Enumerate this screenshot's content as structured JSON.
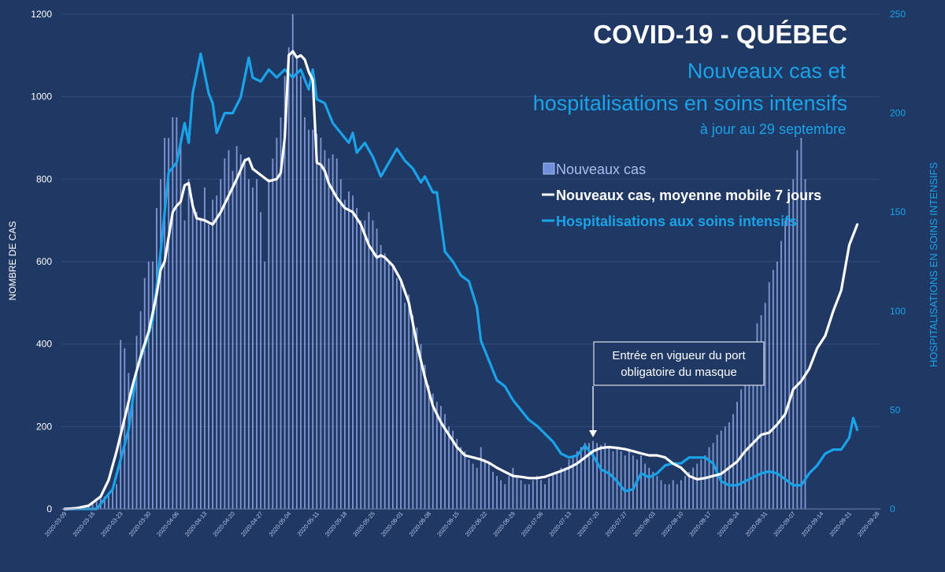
{
  "colors": {
    "background": "#1f3864",
    "bars": "#8fa9e6",
    "bar_top": "#4472c4",
    "cases_line": "#ffffff",
    "icu_line": "#1aa3e8",
    "title": "#ffffff",
    "subtitle": "#1aa3e8",
    "left_ticks": "#ffffff",
    "right_ticks": "#1aa3e8",
    "grid": "#324a7a",
    "annotation_border": "#ffffff"
  },
  "chart_data": {
    "type": "bar",
    "title": "COVID-19 - QUÉBEC",
    "subtitle_line1": "Nouveaux cas et",
    "subtitle_line2": "hospitalisations en soins intensifs",
    "updated": "à jour au 29 septembre",
    "ylabel": "NOMBRE DE CAS",
    "y2label": "HOSPITALISATIONS EN SOINS INTENSIFS",
    "ylim": [
      0,
      1200
    ],
    "y2lim": [
      0,
      250
    ],
    "yticks": [
      "0",
      "200",
      "400",
      "600",
      "800",
      "1000",
      "1200"
    ],
    "y2ticks": [
      "0",
      "50",
      "100",
      "150",
      "200",
      "250"
    ],
    "start_date": "2020-03-09",
    "xticks": [
      "2020-03-09",
      "2020-03-16",
      "2020-03-23",
      "2020-03-30",
      "2020-04-06",
      "2020-04-13",
      "2020-04-20",
      "2020-04-27",
      "2020-05-04",
      "2020-05-11",
      "2020-05-18",
      "2020-05-25",
      "2020-06-01",
      "2020-06-08",
      "2020-06-15",
      "2020-06-22",
      "2020-06-29",
      "2020-07-06",
      "2020-07-13",
      "2020-07-20",
      "2020-07-27",
      "2020-08-03",
      "2020-08-10",
      "2020-08-17",
      "2020-08-24",
      "2020-08-31",
      "2020-09-07",
      "2020-09-14",
      "2020-09-21",
      "2020-09-28"
    ],
    "legend": {
      "bars": "Nouveaux cas",
      "avg": "Nouveaux cas, moyenne mobile 7 jours",
      "icu": "Hospitalisations aux soins intensifs"
    },
    "annotation": {
      "line1": "Entrée en vigueur du port",
      "line2": "obligatoire du masque",
      "date_index": 132
    },
    "series": [
      {
        "name": "Nouveaux cas",
        "kind": "bars",
        "values": [
          1,
          1,
          2,
          2,
          3,
          5,
          8,
          12,
          18,
          25,
          30,
          38,
          50,
          60,
          410,
          390,
          330,
          300,
          420,
          480,
          560,
          600,
          600,
          730,
          800,
          900,
          900,
          950,
          950,
          900,
          700,
          800,
          750,
          720,
          700,
          780,
          690,
          750,
          760,
          800,
          850,
          870,
          820,
          880,
          860,
          850,
          800,
          780,
          800,
          720,
          600,
          800,
          850,
          900,
          950,
          1050,
          1120,
          1200,
          1100,
          1050,
          950,
          920,
          920,
          910,
          900,
          870,
          850,
          860,
          850,
          800,
          750,
          770,
          760,
          730,
          700,
          700,
          720,
          700,
          680,
          640,
          620,
          600,
          590,
          560,
          550,
          500,
          520,
          470,
          440,
          400,
          350,
          300,
          280,
          260,
          250,
          230,
          200,
          190,
          170,
          150,
          140,
          120,
          110,
          100,
          150,
          120,
          110,
          90,
          80,
          70,
          60,
          80,
          100,
          80,
          70,
          60,
          60,
          70,
          80,
          70,
          60,
          75,
          85,
          90,
          100,
          100,
          120,
          130,
          140,
          150,
          160,
          160,
          165,
          160,
          155,
          160,
          150,
          140,
          150,
          140,
          130,
          140,
          130,
          120,
          130,
          110,
          100,
          90,
          80,
          70,
          60,
          60,
          70,
          60,
          70,
          80,
          90,
          100,
          110,
          120,
          130,
          150,
          160,
          180,
          190,
          200,
          210,
          230,
          260,
          290,
          350,
          380,
          400,
          450,
          470,
          500,
          550,
          580,
          600,
          650,
          700,
          750,
          800,
          870,
          900,
          800
        ],
        "step_days": 1
      },
      {
        "name": "Nouveaux cas, moyenne mobile 7 jours",
        "kind": "line",
        "axis": "left",
        "points": [
          [
            0,
            0
          ],
          [
            3,
            2
          ],
          [
            6,
            8
          ],
          [
            9,
            30
          ],
          [
            11,
            70
          ],
          [
            13,
            140
          ],
          [
            15,
            220
          ],
          [
            17,
            300
          ],
          [
            19,
            370
          ],
          [
            21,
            430
          ],
          [
            23,
            520
          ],
          [
            24,
            580
          ],
          [
            25,
            600
          ],
          [
            26,
            660
          ],
          [
            27,
            720
          ],
          [
            28,
            735
          ],
          [
            29,
            745
          ],
          [
            30,
            785
          ],
          [
            31,
            790
          ],
          [
            32,
            735
          ],
          [
            33,
            705
          ],
          [
            35,
            700
          ],
          [
            37,
            690
          ],
          [
            39,
            720
          ],
          [
            41,
            760
          ],
          [
            43,
            800
          ],
          [
            45,
            845
          ],
          [
            46,
            850
          ],
          [
            47,
            825
          ],
          [
            49,
            810
          ],
          [
            51,
            795
          ],
          [
            53,
            800
          ],
          [
            54,
            815
          ],
          [
            55,
            900
          ],
          [
            56,
            1100
          ],
          [
            57,
            1110
          ],
          [
            58,
            1095
          ],
          [
            59,
            1100
          ],
          [
            60,
            1090
          ],
          [
            61,
            1060
          ],
          [
            62,
            1040
          ],
          [
            63,
            840
          ],
          [
            64,
            835
          ],
          [
            65,
            820
          ],
          [
            66,
            790
          ],
          [
            68,
            755
          ],
          [
            70,
            730
          ],
          [
            72,
            720
          ],
          [
            74,
            690
          ],
          [
            76,
            640
          ],
          [
            78,
            610
          ],
          [
            79,
            615
          ],
          [
            80,
            610
          ],
          [
            82,
            590
          ],
          [
            84,
            555
          ],
          [
            86,
            500
          ],
          [
            88,
            400
          ],
          [
            90,
            320
          ],
          [
            92,
            250
          ],
          [
            94,
            210
          ],
          [
            96,
            180
          ],
          [
            98,
            150
          ],
          [
            100,
            130
          ],
          [
            102,
            125
          ],
          [
            104,
            120
          ],
          [
            106,
            112
          ],
          [
            108,
            100
          ],
          [
            110,
            90
          ],
          [
            112,
            80
          ],
          [
            114,
            78
          ],
          [
            116,
            75
          ],
          [
            118,
            75
          ],
          [
            120,
            78
          ],
          [
            122,
            85
          ],
          [
            124,
            92
          ],
          [
            126,
            100
          ],
          [
            128,
            110
          ],
          [
            130,
            125
          ],
          [
            132,
            140
          ],
          [
            134,
            148
          ],
          [
            136,
            150
          ],
          [
            138,
            148
          ],
          [
            140,
            145
          ],
          [
            142,
            140
          ],
          [
            144,
            135
          ],
          [
            146,
            130
          ],
          [
            148,
            130
          ],
          [
            150,
            125
          ],
          [
            152,
            110
          ],
          [
            154,
            100
          ],
          [
            156,
            80
          ],
          [
            158,
            72
          ],
          [
            160,
            75
          ],
          [
            162,
            80
          ],
          [
            164,
            85
          ],
          [
            166,
            100
          ],
          [
            168,
            115
          ],
          [
            170,
            140
          ],
          [
            172,
            160
          ],
          [
            174,
            180
          ],
          [
            176,
            185
          ],
          [
            178,
            205
          ],
          [
            180,
            230
          ],
          [
            182,
            290
          ],
          [
            184,
            310
          ],
          [
            186,
            340
          ],
          [
            188,
            390
          ],
          [
            190,
            420
          ],
          [
            192,
            480
          ],
          [
            194,
            530
          ],
          [
            196,
            640
          ],
          [
            198,
            690
          ]
        ]
      },
      {
        "name": "Hospitalisations aux soins intensifs",
        "kind": "line",
        "axis": "right",
        "points": [
          [
            0,
            0
          ],
          [
            8,
            0
          ],
          [
            10,
            5
          ],
          [
            12,
            10
          ],
          [
            14,
            25
          ],
          [
            16,
            40
          ],
          [
            18,
            70
          ],
          [
            20,
            82
          ],
          [
            22,
            95
          ],
          [
            24,
            130
          ],
          [
            26,
            170
          ],
          [
            28,
            175
          ],
          [
            30,
            195
          ],
          [
            31,
            185
          ],
          [
            32,
            210
          ],
          [
            33,
            220
          ],
          [
            34,
            230
          ],
          [
            35,
            220
          ],
          [
            36,
            210
          ],
          [
            37,
            205
          ],
          [
            38,
            190
          ],
          [
            40,
            200
          ],
          [
            42,
            200
          ],
          [
            44,
            208
          ],
          [
            46,
            228
          ],
          [
            47,
            218
          ],
          [
            49,
            216
          ],
          [
            51,
            222
          ],
          [
            53,
            218
          ],
          [
            55,
            222
          ],
          [
            57,
            218
          ],
          [
            59,
            222
          ],
          [
            61,
            212
          ],
          [
            62,
            222
          ],
          [
            63,
            207
          ],
          [
            65,
            205
          ],
          [
            67,
            195
          ],
          [
            69,
            190
          ],
          [
            71,
            185
          ],
          [
            72,
            190
          ],
          [
            73,
            180
          ],
          [
            75,
            185
          ],
          [
            77,
            178
          ],
          [
            79,
            168
          ],
          [
            81,
            175
          ],
          [
            83,
            182
          ],
          [
            85,
            176
          ],
          [
            87,
            172
          ],
          [
            89,
            165
          ],
          [
            90,
            168
          ],
          [
            92,
            160
          ],
          [
            93,
            160
          ],
          [
            95,
            130
          ],
          [
            97,
            125
          ],
          [
            99,
            118
          ],
          [
            101,
            115
          ],
          [
            103,
            102
          ],
          [
            104,
            85
          ],
          [
            106,
            75
          ],
          [
            108,
            65
          ],
          [
            110,
            62
          ],
          [
            112,
            55
          ],
          [
            114,
            50
          ],
          [
            116,
            45
          ],
          [
            118,
            42
          ],
          [
            120,
            38
          ],
          [
            122,
            34
          ],
          [
            124,
            28
          ],
          [
            126,
            26
          ],
          [
            128,
            27
          ],
          [
            130,
            32
          ],
          [
            132,
            27
          ],
          [
            134,
            20
          ],
          [
            136,
            18
          ],
          [
            138,
            14
          ],
          [
            140,
            9
          ],
          [
            142,
            10
          ],
          [
            144,
            18
          ],
          [
            146,
            16
          ],
          [
            148,
            18
          ],
          [
            150,
            22
          ],
          [
            152,
            23
          ],
          [
            154,
            23
          ],
          [
            156,
            26
          ],
          [
            158,
            26
          ],
          [
            160,
            26
          ],
          [
            162,
            23
          ],
          [
            164,
            14
          ],
          [
            166,
            12
          ],
          [
            168,
            12
          ],
          [
            170,
            14
          ],
          [
            172,
            16
          ],
          [
            174,
            18
          ],
          [
            176,
            19
          ],
          [
            178,
            18
          ],
          [
            180,
            15
          ],
          [
            182,
            12
          ],
          [
            184,
            12
          ],
          [
            186,
            18
          ],
          [
            188,
            22
          ],
          [
            190,
            28
          ],
          [
            192,
            30
          ],
          [
            194,
            30
          ],
          [
            196,
            36
          ],
          [
            197,
            46
          ],
          [
            198,
            40
          ]
        ]
      }
    ]
  }
}
